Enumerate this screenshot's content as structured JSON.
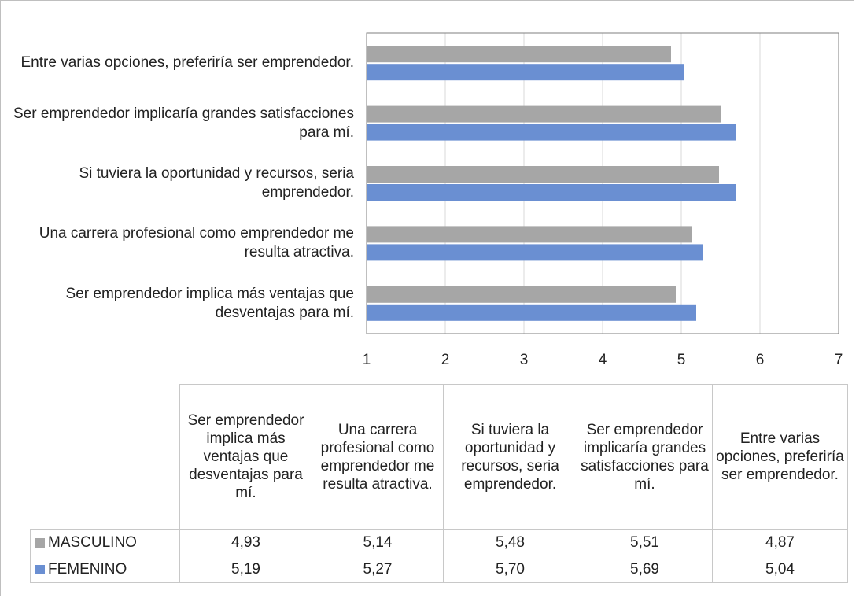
{
  "chart_data": {
    "type": "bar",
    "orientation": "horizontal",
    "categories": [
      "Ser emprendedor implica más ventajas que desventajas para mí.",
      "Una carrera profesional como emprendedor me resulta atractiva.",
      "Si tuviera la oportunidad y recursos, seria emprendedor.",
      "Ser emprendedor implicaría grandes satisfacciones para mí.",
      "Entre varias opciones, preferiría ser emprendedor."
    ],
    "series": [
      {
        "name": "MASCULINO",
        "color": "#a6a6a6",
        "values": [
          4.93,
          5.14,
          5.48,
          5.51,
          4.87
        ],
        "value_labels": [
          "4,93",
          "5,14",
          "5,48",
          "5,51",
          "4,87"
        ]
      },
      {
        "name": "FEMENINO",
        "color": "#6a8fd2",
        "values": [
          5.19,
          5.27,
          5.7,
          5.69,
          5.04
        ],
        "value_labels": [
          "5,19",
          "5,27",
          "5,70",
          "5,69",
          "5,04"
        ]
      }
    ],
    "xlim": [
      1,
      7
    ],
    "xticks": [
      1,
      2,
      3,
      4,
      5,
      6,
      7
    ],
    "grid": true,
    "data_table": true
  }
}
